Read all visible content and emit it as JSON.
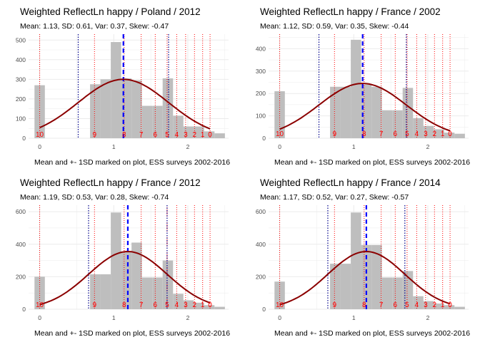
{
  "chart_data": [
    {
      "type": "bar",
      "title": "Weighted ReflectLn happy / Poland / 2012",
      "subtitle": "Mean: 1.13, SD: 0.61, Var: 0.37, Skew: -0.47",
      "caption": "Mean and +- 1SD marked on plot, ESS surveys 2002-2016",
      "xlim": [
        -0.15,
        2.55
      ],
      "ylim": [
        0,
        530
      ],
      "xticks": [
        0,
        1,
        2
      ],
      "xtick_labels": [
        "0",
        "1",
        "2"
      ],
      "yticks": [
        0,
        100,
        200,
        300,
        400,
        500
      ],
      "ytick_labels": [
        "0",
        "100",
        "200",
        "300",
        "400",
        "500"
      ],
      "bars": [
        {
          "x0": -0.07,
          "x1": 0.07,
          "value": 270
        },
        {
          "x0": 0.68,
          "x1": 0.82,
          "value": 275
        },
        {
          "x0": 0.82,
          "x1": 0.96,
          "value": 300
        },
        {
          "x0": 0.96,
          "x1": 1.1,
          "value": 490
        },
        {
          "x0": 1.1,
          "x1": 1.24,
          "value": 305
        },
        {
          "x0": 1.24,
          "x1": 1.38,
          "value": 295
        },
        {
          "x0": 1.38,
          "x1": 1.52,
          "value": 165
        },
        {
          "x0": 1.52,
          "x1": 1.66,
          "value": 165
        },
        {
          "x0": 1.66,
          "x1": 1.8,
          "value": 305
        },
        {
          "x0": 1.8,
          "x1": 1.94,
          "value": 115
        },
        {
          "x0": 1.94,
          "x1": 2.08,
          "value": 60
        },
        {
          "x0": 2.08,
          "x1": 2.22,
          "value": 60
        },
        {
          "x0": 2.22,
          "x1": 2.36,
          "value": 35
        },
        {
          "x0": 2.36,
          "x1": 2.5,
          "value": 25
        }
      ],
      "red_lines": [
        0,
        0.74,
        1.14,
        1.37,
        1.56,
        1.72,
        1.85,
        1.97,
        2.09,
        2.2,
        2.3
      ],
      "score_labels": [
        "10",
        "9",
        "8",
        "7",
        "6",
        "5",
        "4",
        "3",
        "2",
        "1",
        "0"
      ],
      "score_label_y": 22,
      "mean": 1.13,
      "sd_lines": [
        0.52,
        1.74
      ],
      "curve": {
        "mean": 1.13,
        "sd": 0.61,
        "peak": 300
      }
    },
    {
      "type": "bar",
      "title": "Weighted ReflectLn happy / France / 2002",
      "subtitle": "Mean: 1.12, SD: 0.59, Var: 0.35, Skew: -0.44",
      "caption": "Mean and +- 1SD marked on plot, ESS surveys 2002-2016",
      "xlim": [
        -0.15,
        2.55
      ],
      "ylim": [
        0,
        465
      ],
      "xticks": [
        0,
        1,
        2
      ],
      "xtick_labels": [
        "0",
        "1",
        "2"
      ],
      "yticks": [
        0,
        100,
        200,
        300,
        400
      ],
      "ytick_labels": [
        "0",
        "100",
        "200",
        "300",
        "400"
      ],
      "bars": [
        {
          "x0": -0.07,
          "x1": 0.07,
          "value": 210
        },
        {
          "x0": 0.68,
          "x1": 0.82,
          "value": 230
        },
        {
          "x0": 0.82,
          "x1": 0.96,
          "value": 230
        },
        {
          "x0": 0.96,
          "x1": 1.1,
          "value": 440
        },
        {
          "x0": 1.1,
          "x1": 1.24,
          "value": 240
        },
        {
          "x0": 1.24,
          "x1": 1.38,
          "value": 230
        },
        {
          "x0": 1.38,
          "x1": 1.52,
          "value": 125
        },
        {
          "x0": 1.52,
          "x1": 1.66,
          "value": 125
        },
        {
          "x0": 1.66,
          "x1": 1.8,
          "value": 225
        },
        {
          "x0": 1.8,
          "x1": 1.94,
          "value": 90
        },
        {
          "x0": 1.94,
          "x1": 2.08,
          "value": 55
        },
        {
          "x0": 2.08,
          "x1": 2.22,
          "value": 40
        },
        {
          "x0": 2.22,
          "x1": 2.36,
          "value": 25
        },
        {
          "x0": 2.36,
          "x1": 2.5,
          "value": 20
        }
      ],
      "red_lines": [
        0,
        0.74,
        1.14,
        1.37,
        1.56,
        1.72,
        1.85,
        1.97,
        2.09,
        2.2,
        2.3
      ],
      "score_labels": [
        "10",
        "9",
        "8",
        "7",
        "6",
        "5",
        "4",
        "3",
        "2",
        "1",
        "0"
      ],
      "score_label_y": 22,
      "mean": 1.12,
      "sd_lines": [
        0.53,
        1.71
      ],
      "curve": {
        "mean": 1.12,
        "sd": 0.59,
        "peak": 245
      }
    },
    {
      "type": "bar",
      "title": "Weighted ReflectLn happy / France / 2012",
      "subtitle": "Mean: 1.19, SD: 0.53, Var: 0.28, Skew: -0.74",
      "caption": "Mean and +- 1SD marked on plot, ESS surveys 2002-2016",
      "xlim": [
        -0.15,
        2.55
      ],
      "ylim": [
        0,
        640
      ],
      "xticks": [
        0,
        1,
        2
      ],
      "xtick_labels": [
        "0",
        "1",
        "2"
      ],
      "yticks": [
        0,
        200,
        400,
        600
      ],
      "ytick_labels": [
        "0",
        "200",
        "400",
        "600"
      ],
      "bars": [
        {
          "x0": -0.07,
          "x1": 0.07,
          "value": 200
        },
        {
          "x0": 0.68,
          "x1": 0.82,
          "value": 215
        },
        {
          "x0": 0.82,
          "x1": 0.96,
          "value": 215
        },
        {
          "x0": 0.96,
          "x1": 1.1,
          "value": 595
        },
        {
          "x0": 1.1,
          "x1": 1.24,
          "value": 355
        },
        {
          "x0": 1.24,
          "x1": 1.38,
          "value": 410
        },
        {
          "x0": 1.38,
          "x1": 1.52,
          "value": 195
        },
        {
          "x0": 1.52,
          "x1": 1.66,
          "value": 195
        },
        {
          "x0": 1.66,
          "x1": 1.8,
          "value": 300
        },
        {
          "x0": 1.8,
          "x1": 1.94,
          "value": 95
        },
        {
          "x0": 1.94,
          "x1": 2.08,
          "value": 55
        },
        {
          "x0": 2.08,
          "x1": 2.22,
          "value": 40
        },
        {
          "x0": 2.22,
          "x1": 2.36,
          "value": 25
        },
        {
          "x0": 2.36,
          "x1": 2.5,
          "value": 15
        }
      ],
      "red_lines": [
        0,
        0.74,
        1.14,
        1.37,
        1.56,
        1.72,
        1.85,
        1.97,
        2.09,
        2.2,
        2.3
      ],
      "score_labels": [
        "10",
        "9",
        "8",
        "7",
        "6",
        "5",
        "4",
        "3",
        "2",
        "1",
        "0"
      ],
      "score_label_y": 30,
      "mean": 1.19,
      "sd_lines": [
        0.66,
        1.72
      ],
      "curve": {
        "mean": 1.19,
        "sd": 0.53,
        "peak": 355
      }
    },
    {
      "type": "bar",
      "title": "Weighted ReflectLn happy / France / 2014",
      "subtitle": "Mean: 1.17, SD: 0.52, Var: 0.27, Skew: -0.57",
      "caption": "Mean and +- 1SD marked on plot, ESS surveys 2002-2016",
      "xlim": [
        -0.15,
        2.55
      ],
      "ylim": [
        0,
        640
      ],
      "xticks": [
        0,
        1,
        2
      ],
      "xtick_labels": [
        "0",
        "1",
        "2"
      ],
      "yticks": [
        0,
        200,
        400,
        600
      ],
      "ytick_labels": [
        "0",
        "200",
        "400",
        "600"
      ],
      "bars": [
        {
          "x0": -0.07,
          "x1": 0.07,
          "value": 170
        },
        {
          "x0": 0.68,
          "x1": 0.82,
          "value": 280
        },
        {
          "x0": 0.82,
          "x1": 0.96,
          "value": 280
        },
        {
          "x0": 0.96,
          "x1": 1.1,
          "value": 595
        },
        {
          "x0": 1.1,
          "x1": 1.24,
          "value": 395
        },
        {
          "x0": 1.24,
          "x1": 1.38,
          "value": 395
        },
        {
          "x0": 1.38,
          "x1": 1.52,
          "value": 195
        },
        {
          "x0": 1.52,
          "x1": 1.66,
          "value": 195
        },
        {
          "x0": 1.66,
          "x1": 1.8,
          "value": 235
        },
        {
          "x0": 1.8,
          "x1": 1.94,
          "value": 80
        },
        {
          "x0": 1.94,
          "x1": 2.08,
          "value": 50
        },
        {
          "x0": 2.08,
          "x1": 2.22,
          "value": 35
        },
        {
          "x0": 2.22,
          "x1": 2.36,
          "value": 25
        },
        {
          "x0": 2.36,
          "x1": 2.5,
          "value": 15
        }
      ],
      "red_lines": [
        0,
        0.74,
        1.14,
        1.37,
        1.56,
        1.72,
        1.85,
        1.97,
        2.09,
        2.2,
        2.3
      ],
      "score_labels": [
        "10",
        "9",
        "8",
        "7",
        "6",
        "5",
        "4",
        "3",
        "2",
        "1",
        "0"
      ],
      "score_label_y": 30,
      "mean": 1.17,
      "sd_lines": [
        0.65,
        1.69
      ],
      "curve": {
        "mean": 1.17,
        "sd": 0.52,
        "peak": 355
      }
    }
  ],
  "colors": {
    "bar": "#bebebe",
    "grid": "#ebebeb",
    "red_line": "#ff0000",
    "score_label": "#ff0000",
    "mean_line": "#0000ff",
    "sd_line": "#00008b",
    "curve": "#8b0000",
    "text": "#000000",
    "axis_text": "#4d4d4d"
  }
}
